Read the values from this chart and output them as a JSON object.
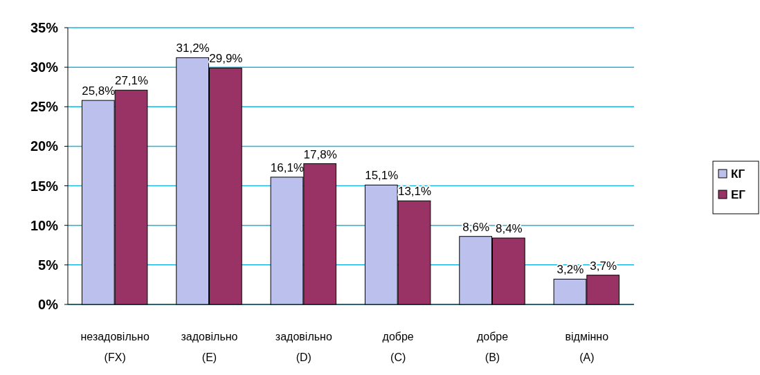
{
  "chart_data": {
    "type": "bar",
    "categories": [
      "незадовільно\n(FX)",
      "задовільно\n(E)",
      "задовільно\n(D)",
      "добре\n(C)",
      "добре\n(B)",
      "відмінно\n(A)"
    ],
    "series": [
      {
        "name": "КГ",
        "color": "#bcc0ec",
        "values": [
          25.8,
          31.2,
          16.1,
          15.1,
          8.6,
          3.2
        ],
        "value_labels": [
          "25,8%",
          "31,2%",
          "16,1%",
          "15,1%",
          "8,6%",
          "3,2%"
        ]
      },
      {
        "name": "ЕГ",
        "color": "#993366",
        "values": [
          27.1,
          29.9,
          17.8,
          13.1,
          8.4,
          3.7
        ],
        "value_labels": [
          "27,1%",
          "29,9%",
          "17,8%",
          "13,1%",
          "8,4%",
          "3,7%"
        ]
      }
    ],
    "ylim": [
      0,
      35
    ],
    "yticks": [
      {
        "value": 0,
        "label": "0%"
      },
      {
        "value": 5,
        "label": "5%"
      },
      {
        "value": 10,
        "label": "10%"
      },
      {
        "value": 15,
        "label": "15%"
      },
      {
        "value": 20,
        "label": "20%"
      },
      {
        "value": 25,
        "label": "25%"
      },
      {
        "value": 30,
        "label": "30%"
      },
      {
        "value": 35,
        "label": "35%"
      }
    ],
    "grid": true,
    "legend": "right"
  }
}
